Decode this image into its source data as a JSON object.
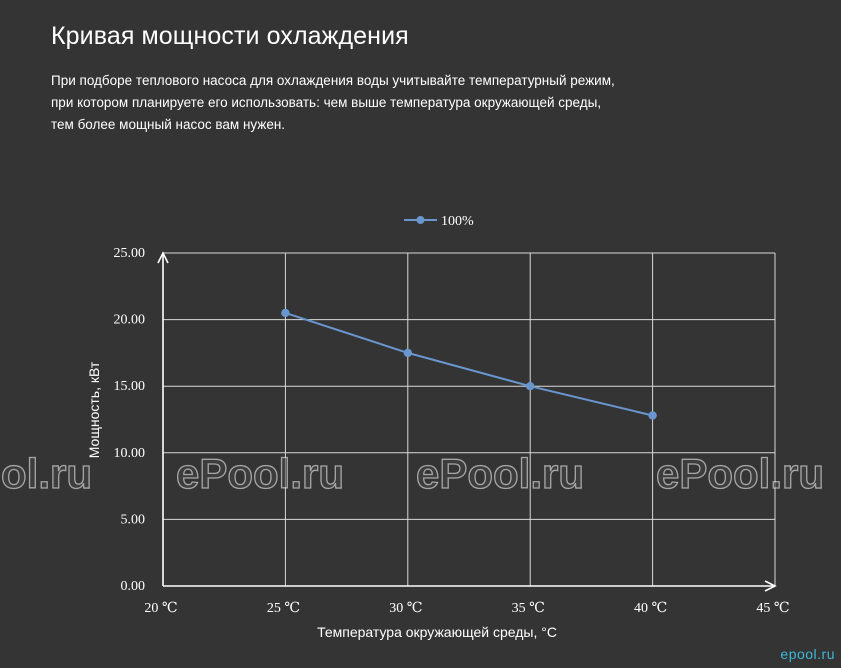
{
  "header": {
    "title": "Кривая мощности охлаждения",
    "description_lines": [
      "При подборе теплового насоса для охлаждения воды учитывайте температурный режим,",
      "при котором планируете его использовать: чем выше температура окружающей среды,",
      "тем более мощный насос вам нужен."
    ]
  },
  "chart_data": {
    "type": "line",
    "xlabel": "Температура окружающей среды, °С",
    "ylabel": "Мощность, кВт",
    "x_tick_labels": [
      "20 ℃",
      "25 ℃",
      "30 ℃",
      "35 ℃",
      "40 ℃",
      "45 ℃"
    ],
    "x_ticks": [
      20,
      25,
      30,
      35,
      40,
      45
    ],
    "y_tick_labels": [
      "0.00",
      "5.00",
      "10.00",
      "15.00",
      "20.00",
      "25.00"
    ],
    "y_ticks": [
      0,
      5,
      10,
      15,
      20,
      25
    ],
    "xlim": [
      20,
      45
    ],
    "ylim": [
      0,
      25
    ],
    "grid": true,
    "legend_position": "top-center",
    "series": [
      {
        "name": "100%",
        "color": "#6a96cf",
        "x": [
          25,
          30,
          35,
          40
        ],
        "values": [
          20.5,
          17.5,
          15.0,
          12.8
        ]
      }
    ]
  },
  "watermark": {
    "text": "ePool.ru",
    "brand": "epool.ru"
  }
}
